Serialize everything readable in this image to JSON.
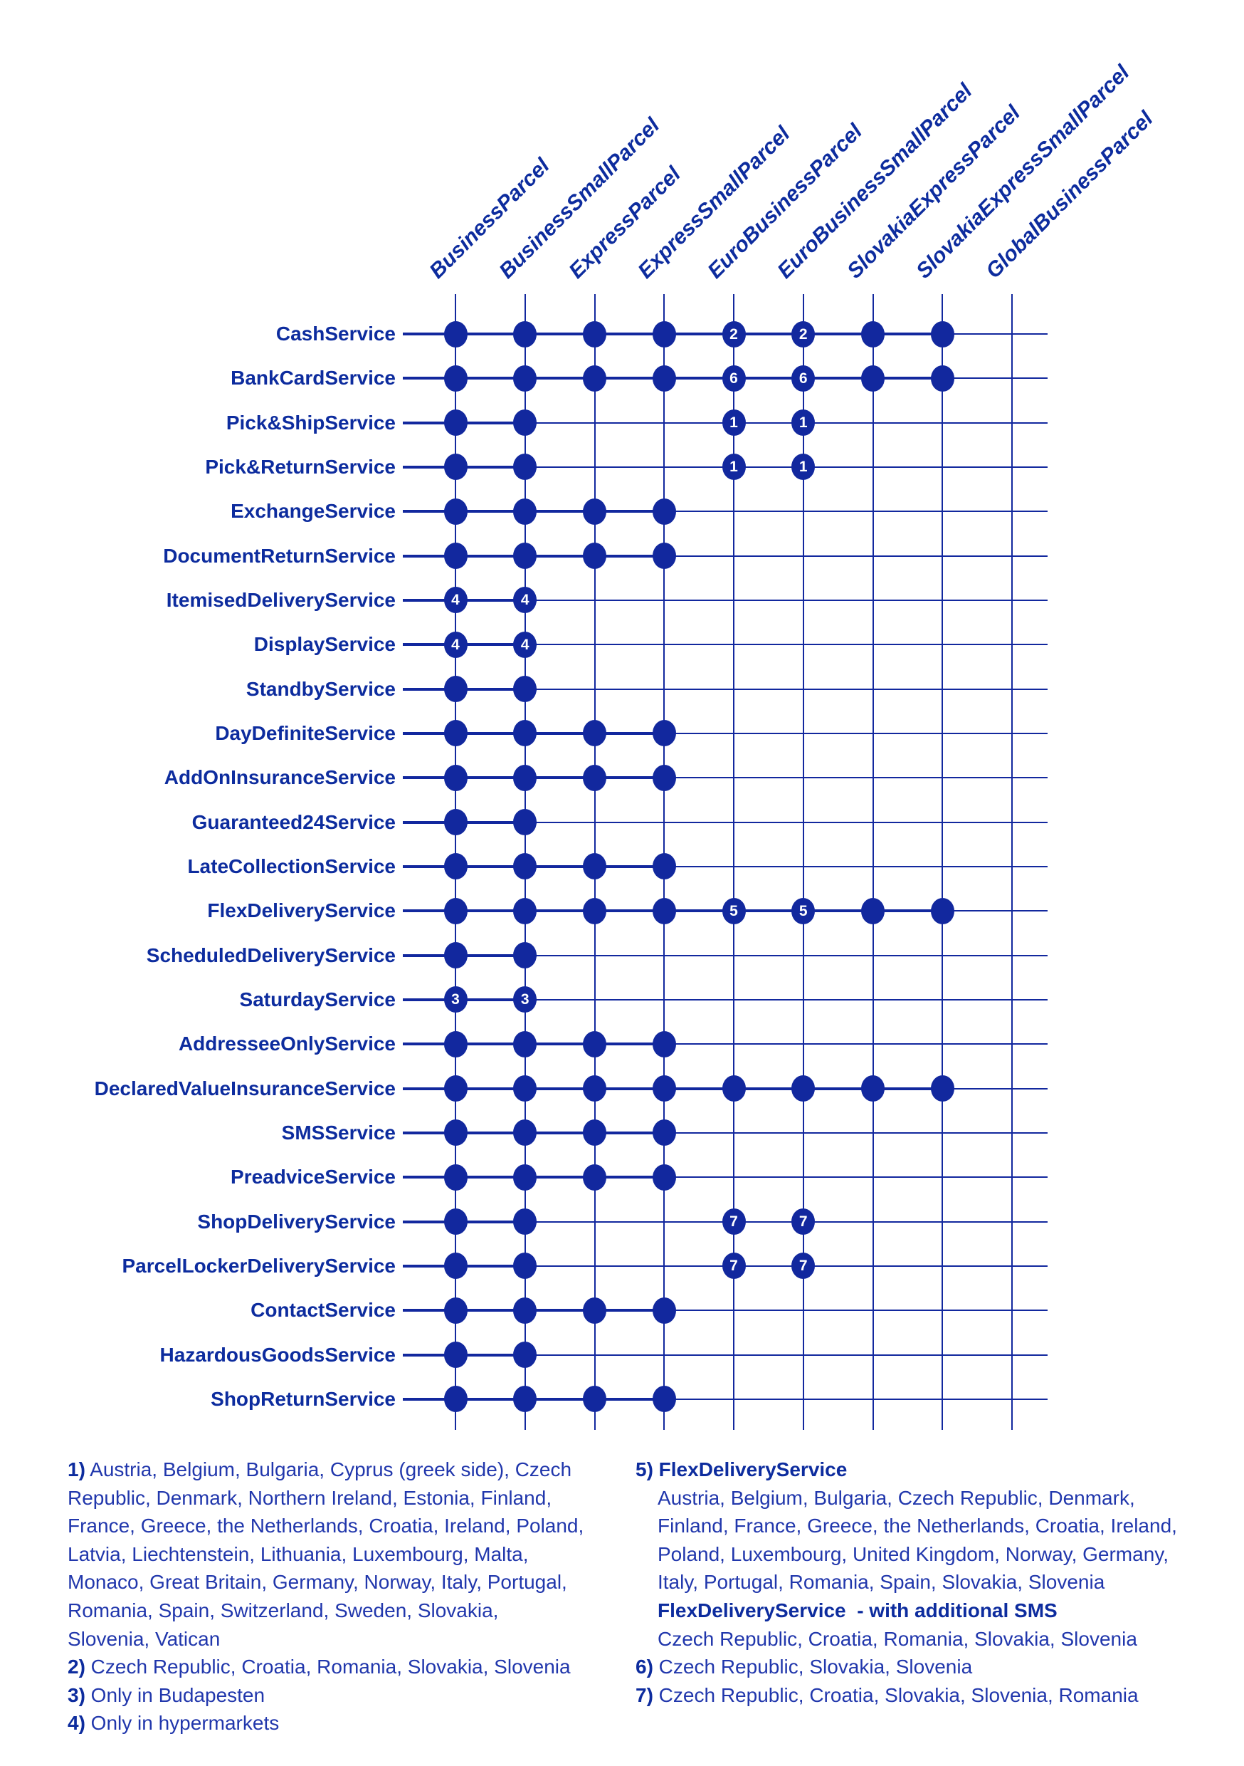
{
  "colors": {
    "primary": "#12289E",
    "label_text": "#0D2C9E",
    "footnote_text": "#2137AC",
    "dot_number": "#FFFFFF",
    "background": "#FFFFFF"
  },
  "matrix": {
    "columns": [
      "BusinessParcel",
      "BusinessSmallParcel",
      "ExpressParcel",
      "ExpressSmallParcel",
      "EuroBusinessParcel",
      "EuroBusinessSmallParcel",
      "SlovakiaExpressParcel",
      "SlovakiaExpressSmallParcel",
      "GlobalBusinessParcel"
    ],
    "cell_legend": "1 = plain dot (service available), string = dot with footnote number, 0 = not available",
    "rows": [
      {
        "label": "CashService",
        "cells": [
          1,
          1,
          1,
          1,
          "2",
          "2",
          1,
          1,
          0
        ]
      },
      {
        "label": "BankCardService",
        "cells": [
          1,
          1,
          1,
          1,
          "6",
          "6",
          1,
          1,
          0
        ]
      },
      {
        "label": "Pick&ShipService",
        "cells": [
          1,
          1,
          0,
          0,
          "1",
          "1",
          0,
          0,
          0
        ]
      },
      {
        "label": "Pick&ReturnService",
        "cells": [
          1,
          1,
          0,
          0,
          "1",
          "1",
          0,
          0,
          0
        ]
      },
      {
        "label": "ExchangeService",
        "cells": [
          1,
          1,
          1,
          1,
          0,
          0,
          0,
          0,
          0
        ]
      },
      {
        "label": "DocumentReturnService",
        "cells": [
          1,
          1,
          1,
          1,
          0,
          0,
          0,
          0,
          0
        ]
      },
      {
        "label": "ItemisedDeliveryService",
        "cells": [
          "4",
          "4",
          0,
          0,
          0,
          0,
          0,
          0,
          0
        ]
      },
      {
        "label": "DisplayService",
        "cells": [
          "4",
          "4",
          0,
          0,
          0,
          0,
          0,
          0,
          0
        ]
      },
      {
        "label": "StandbyService",
        "cells": [
          1,
          1,
          0,
          0,
          0,
          0,
          0,
          0,
          0
        ]
      },
      {
        "label": "DayDefiniteService",
        "cells": [
          1,
          1,
          1,
          1,
          0,
          0,
          0,
          0,
          0
        ]
      },
      {
        "label": "AddOnInsuranceService",
        "cells": [
          1,
          1,
          1,
          1,
          0,
          0,
          0,
          0,
          0
        ]
      },
      {
        "label": "Guaranteed24Service",
        "cells": [
          1,
          1,
          0,
          0,
          0,
          0,
          0,
          0,
          0
        ]
      },
      {
        "label": "LateCollectionService",
        "cells": [
          1,
          1,
          1,
          1,
          0,
          0,
          0,
          0,
          0
        ]
      },
      {
        "label": "FlexDeliveryService",
        "cells": [
          1,
          1,
          1,
          1,
          "5",
          "5",
          1,
          1,
          0
        ]
      },
      {
        "label": "ScheduledDeliveryService",
        "cells": [
          1,
          1,
          0,
          0,
          0,
          0,
          0,
          0,
          0
        ]
      },
      {
        "label": "SaturdayService",
        "cells": [
          "3",
          "3",
          0,
          0,
          0,
          0,
          0,
          0,
          0
        ]
      },
      {
        "label": "AddresseeOnlyService",
        "cells": [
          1,
          1,
          1,
          1,
          0,
          0,
          0,
          0,
          0
        ]
      },
      {
        "label": "DeclaredValueInsuranceService",
        "cells": [
          1,
          1,
          1,
          1,
          1,
          1,
          1,
          1,
          0
        ]
      },
      {
        "label": "SMSService",
        "cells": [
          1,
          1,
          1,
          1,
          0,
          0,
          0,
          0,
          0
        ]
      },
      {
        "label": "PreadviceService",
        "cells": [
          1,
          1,
          1,
          1,
          0,
          0,
          0,
          0,
          0
        ]
      },
      {
        "label": "ShopDeliveryService",
        "cells": [
          1,
          1,
          0,
          0,
          "7",
          "7",
          0,
          0,
          0
        ]
      },
      {
        "label": "ParcelLockerDeliveryService",
        "cells": [
          1,
          1,
          0,
          0,
          "7",
          "7",
          0,
          0,
          0
        ]
      },
      {
        "label": "ContactService",
        "cells": [
          1,
          1,
          1,
          1,
          0,
          0,
          0,
          0,
          0
        ]
      },
      {
        "label": "HazardousGoodsService",
        "cells": [
          1,
          1,
          0,
          0,
          0,
          0,
          0,
          0,
          0
        ]
      },
      {
        "label": "ShopReturnService",
        "cells": [
          1,
          1,
          1,
          1,
          0,
          0,
          0,
          0,
          0
        ]
      }
    ]
  },
  "footnotes": {
    "left": [
      {
        "bold": "1)",
        "text": " Austria, Belgium, Bulgaria, Cyprus (greek side), Czech"
      },
      {
        "text": "Republic, Denmark, Northern Ireland, Estonia, Finland,"
      },
      {
        "text": "France, Greece, the Netherlands, Croatia, Ireland, Poland,"
      },
      {
        "text": "Latvia, Liechtenstein, Lithuania, Luxembourg, Malta,"
      },
      {
        "text": "Monaco, Great Britain, Germany, Norway, Italy, Portugal,"
      },
      {
        "text": "Romania, Spain, Switzerland, Sweden, Slovakia,"
      },
      {
        "text": "Slovenia, Vatican"
      },
      {
        "bold": "2)",
        "text": " Czech Republic, Croatia, Romania, Slovakia, Slovenia"
      },
      {
        "bold": "3)",
        "text": " Only in Budapesten"
      },
      {
        "bold": "4)",
        "text": " Only in hypermarkets"
      }
    ],
    "right": [
      {
        "bold": "5) FlexDeliveryService",
        "text": ""
      },
      {
        "text": "Austria, Belgium, Bulgaria, Czech Republic, Denmark,",
        "indent": true
      },
      {
        "text": "Finland, France, Greece, the Netherlands, Croatia, Ireland,",
        "indent": true
      },
      {
        "text": "Poland, Luxembourg, United Kingdom, Norway, Germany,",
        "indent": true
      },
      {
        "text": "Italy, Portugal, Romania, Spain, Slovakia, Slovenia",
        "indent": true
      },
      {
        "bold": "FlexDeliveryService  - with additional SMS",
        "text": "",
        "indent": true
      },
      {
        "text": "Czech Republic, Croatia, Romania, Slovakia, Slovenia",
        "indent": true
      },
      {
        "bold": "6)",
        "text": " Czech Republic, Slovakia, Slovenia"
      },
      {
        "bold": "7)",
        "text": " Czech Republic, Croatia, Slovakia, Slovenia, Romania"
      }
    ]
  }
}
